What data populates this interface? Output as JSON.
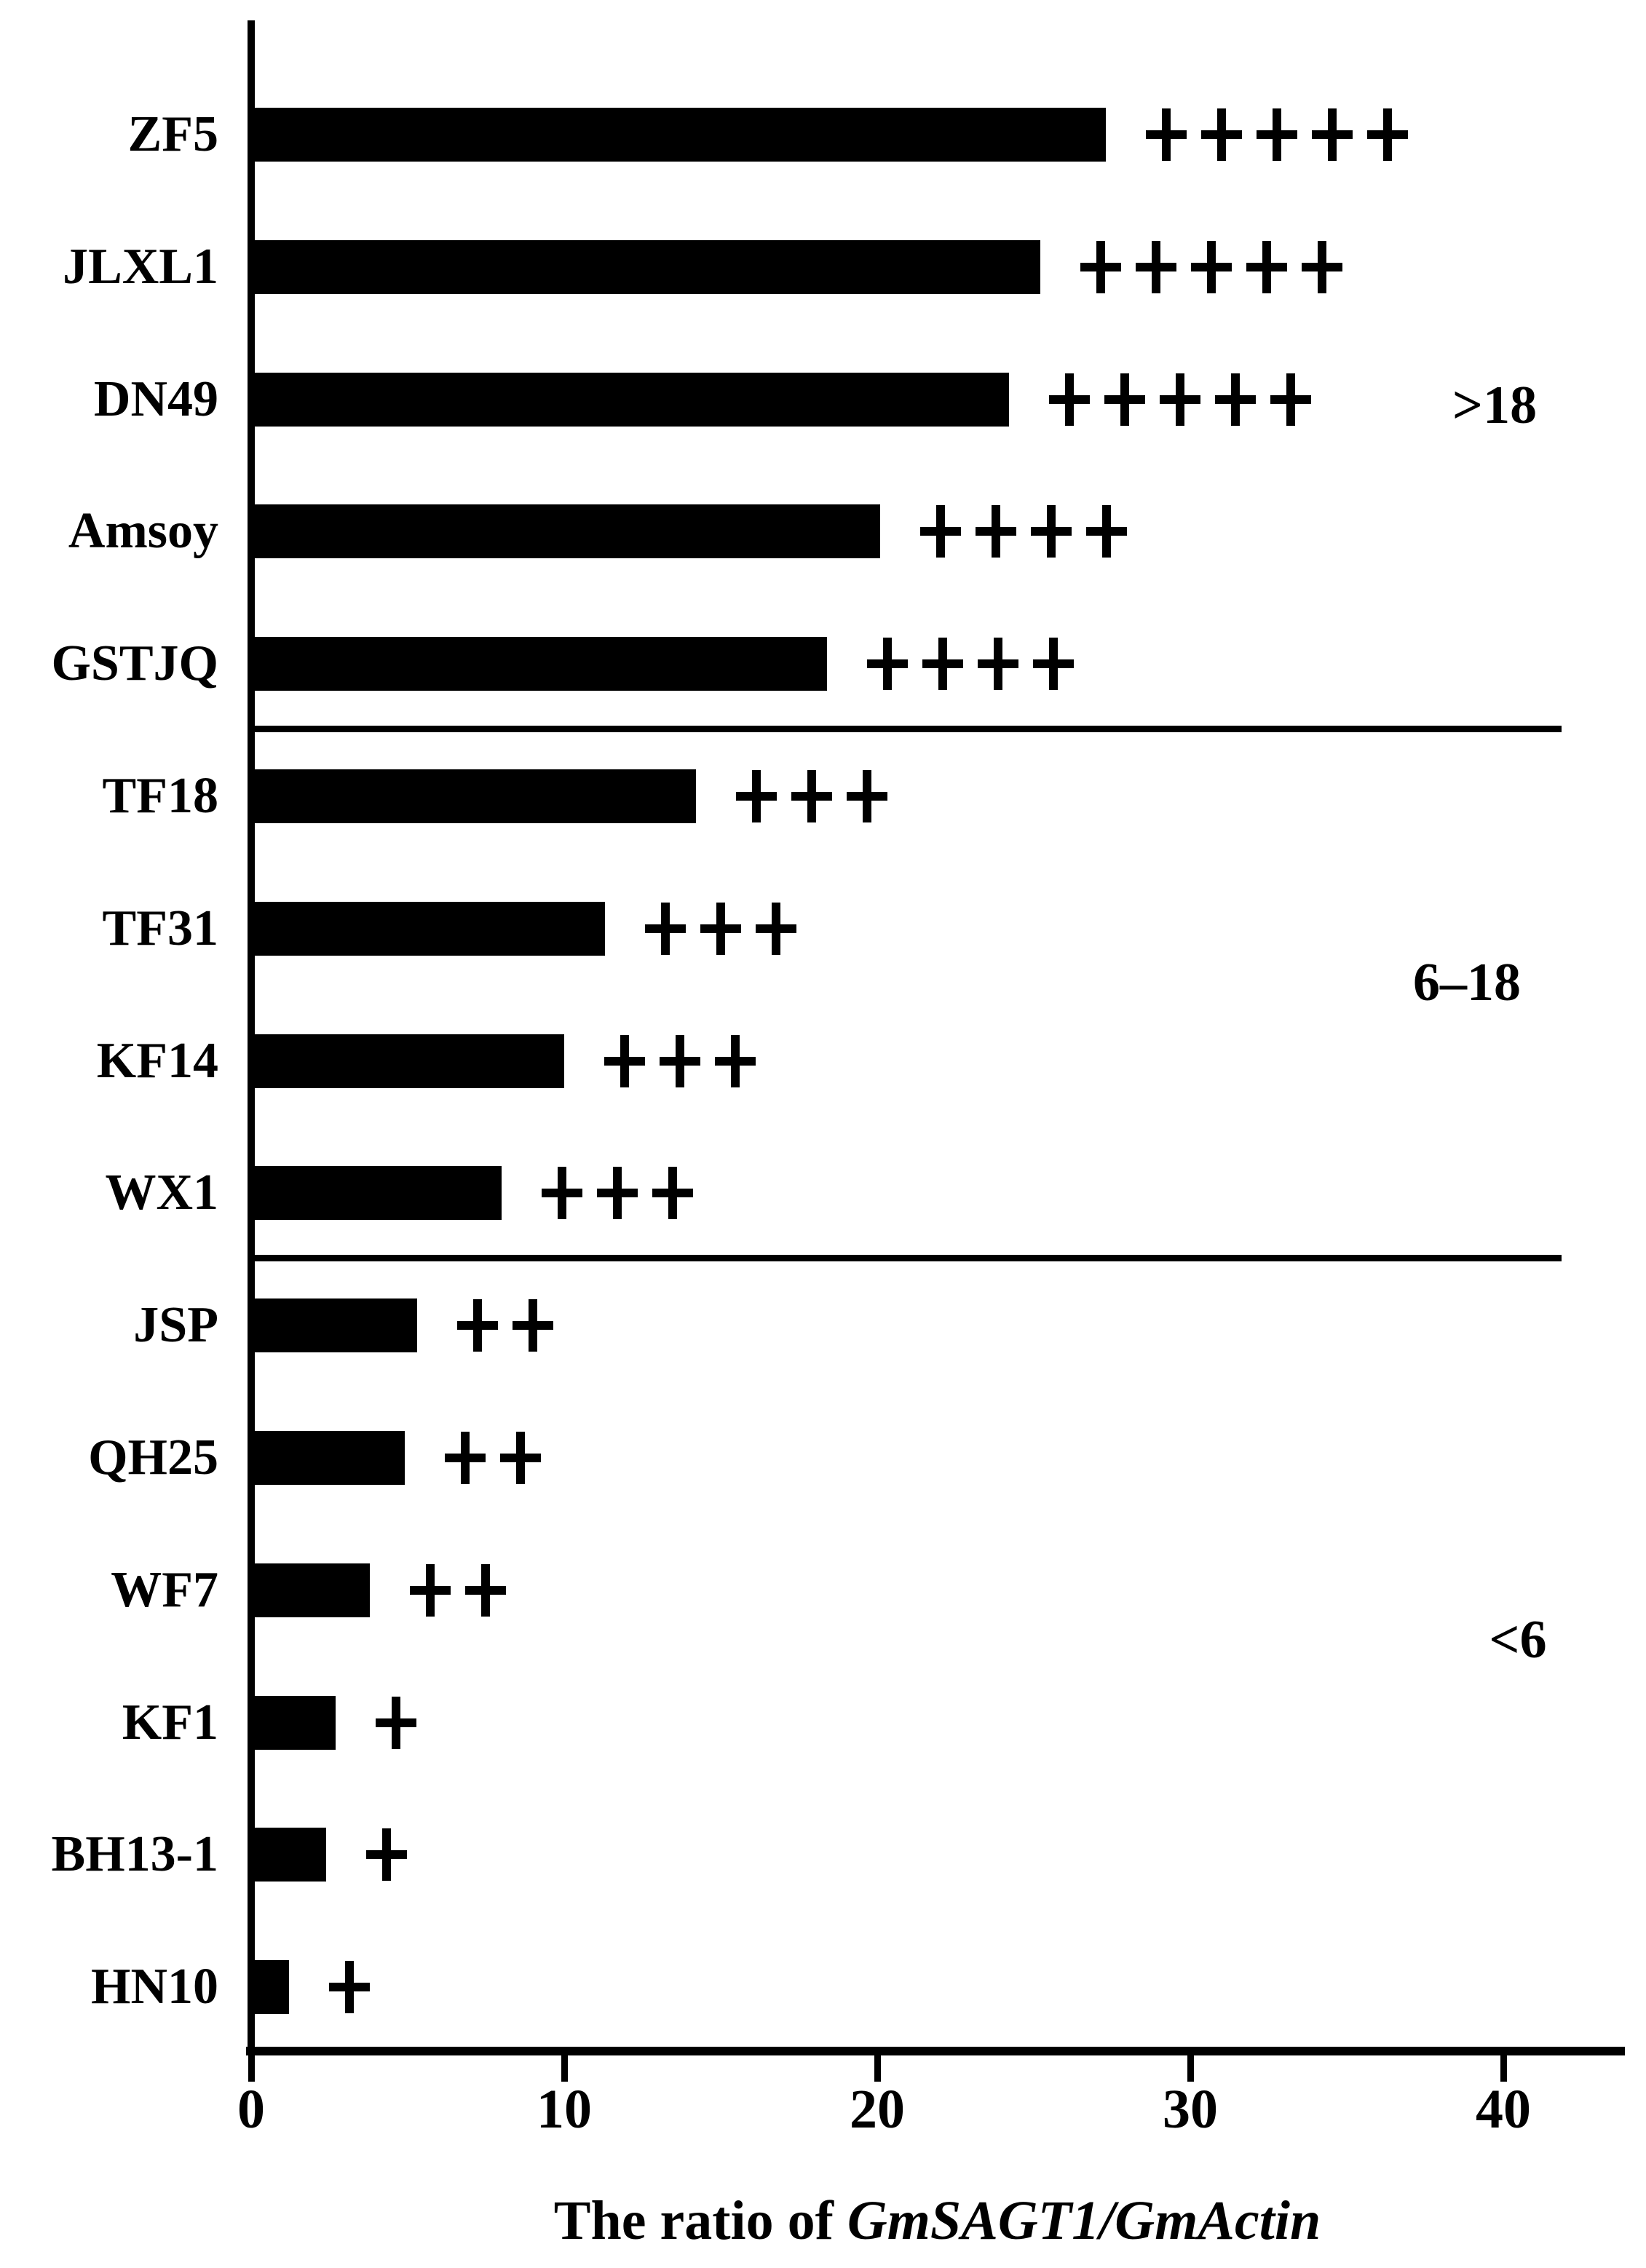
{
  "chart_data": {
    "type": "bar",
    "orientation": "horizontal",
    "title": "",
    "categories": [
      "ZF5",
      "JLXL1",
      "DN49",
      "Amsoy",
      "GSTJQ",
      "TF18",
      "TF31",
      "KF14",
      "WX1",
      "JSP",
      "QH25",
      "WF7",
      "KF1",
      "BH13-1",
      "HN10"
    ],
    "values": [
      27.3,
      25.2,
      24.2,
      20.1,
      18.4,
      14.2,
      11.3,
      10.0,
      8.0,
      5.3,
      4.9,
      3.8,
      2.7,
      2.4,
      1.2
    ],
    "plus_marks": [
      "+++++",
      "+++++",
      "+++++",
      "++++",
      "++++",
      "+++",
      "+++",
      "+++",
      "+++",
      "++",
      "++",
      "++",
      "+",
      "+",
      "+"
    ],
    "x_ticks": [
      "0",
      "10",
      "20",
      "30",
      "40"
    ],
    "xlim": [
      0,
      44
    ],
    "grid": false,
    "legend": false,
    "bar_color": "#000000",
    "xlabel": "The ratio of GmSAGT1/GmActin",
    "xlabel_prefix": "The ratio of ",
    "xlabel_italic": "GmSAGT1/GmActin",
    "group_annotations": [
      {
        "label": ">18",
        "rows": [
          "ZF5",
          "JLXL1",
          "DN49",
          "Amsoy",
          "GSTJQ"
        ]
      },
      {
        "label": "6–18",
        "rows": [
          "TF18",
          "TF31",
          "KF14",
          "WX1"
        ]
      },
      {
        "label": "<6",
        "rows": [
          "JSP",
          "QH25",
          "WF7",
          "KF1",
          "BH13-1",
          "HN10"
        ]
      }
    ]
  },
  "colors": {
    "bar": "#000000",
    "background": "#ffffff",
    "axis": "#000000"
  }
}
